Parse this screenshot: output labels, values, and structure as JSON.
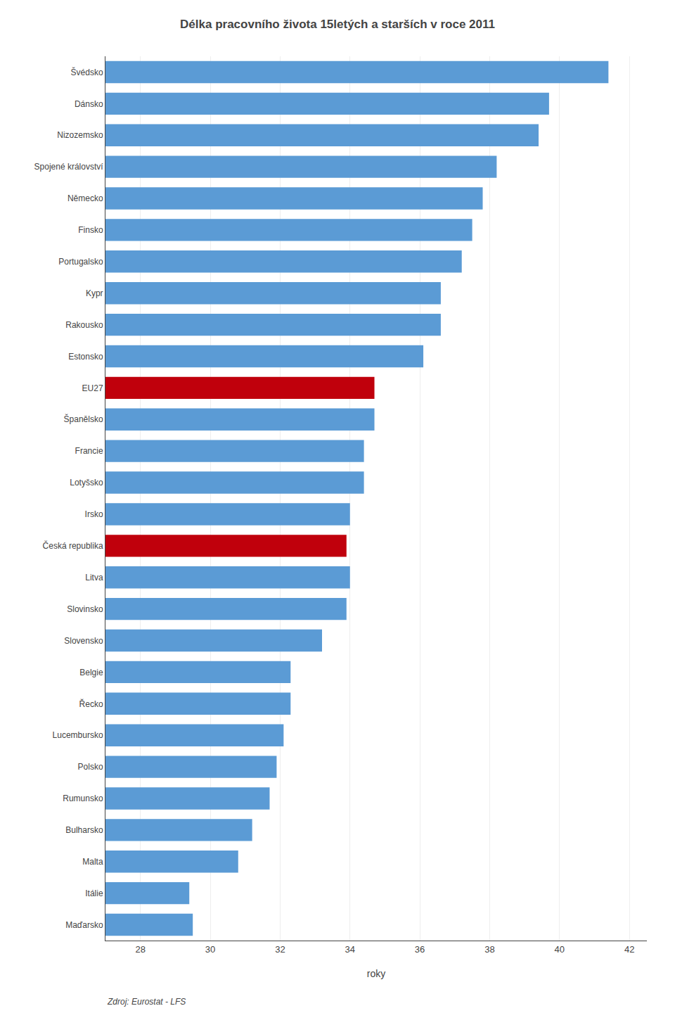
{
  "chart_data": {
    "type": "bar",
    "orientation": "horizontal",
    "title": "Délka pracovního života 15letých a starších v roce 2011",
    "xlabel": "roky",
    "annotations": [
      "Zdroj: Eurostat - LFS"
    ],
    "categories": [
      "Maďarsko",
      "Itálie",
      "Malta",
      "Bulharsko",
      "Rumunsko",
      "Polsko",
      "Lucembursko",
      "Řecko",
      "Belgie",
      "Slovensko",
      "Slovinsko",
      "Litva",
      "Česká republika",
      "Irsko",
      "Lotyšsko",
      "Francie",
      "Španělsko",
      "EU27",
      "Estonsko",
      "Rakousko",
      "Kypr",
      "Portugalsko",
      "Finsko",
      "Německo",
      "Spojené království",
      "Nizozemsko",
      "Dánsko",
      "Švédsko"
    ],
    "values": [
      29.5,
      29.4,
      30.8,
      31.2,
      31.7,
      31.9,
      32.1,
      32.3,
      32.3,
      33.2,
      33.9,
      34.0,
      33.9,
      34.0,
      34.4,
      34.4,
      34.7,
      34.7,
      36.1,
      36.6,
      36.6,
      37.2,
      37.5,
      37.8,
      38.2,
      39.4,
      39.7,
      41.4
    ],
    "colors": [
      "#5B9BD5",
      "#5B9BD5",
      "#5B9BD5",
      "#5B9BD5",
      "#5B9BD5",
      "#5B9BD5",
      "#5B9BD5",
      "#5B9BD5",
      "#5B9BD5",
      "#5B9BD5",
      "#5B9BD5",
      "#5B9BD5",
      "#C0000C",
      "#5B9BD5",
      "#5B9BD5",
      "#5B9BD5",
      "#5B9BD5",
      "#C0000C",
      "#5B9BD5",
      "#5B9BD5",
      "#5B9BD5",
      "#5B9BD5",
      "#5B9BD5",
      "#5B9BD5",
      "#5B9BD5",
      "#5B9BD5",
      "#5B9BD5",
      "#5B9BD5"
    ],
    "xlim": [
      27,
      42.5
    ],
    "xticks": [
      28,
      30,
      32,
      34,
      36,
      38,
      40,
      42
    ],
    "grid": true
  }
}
